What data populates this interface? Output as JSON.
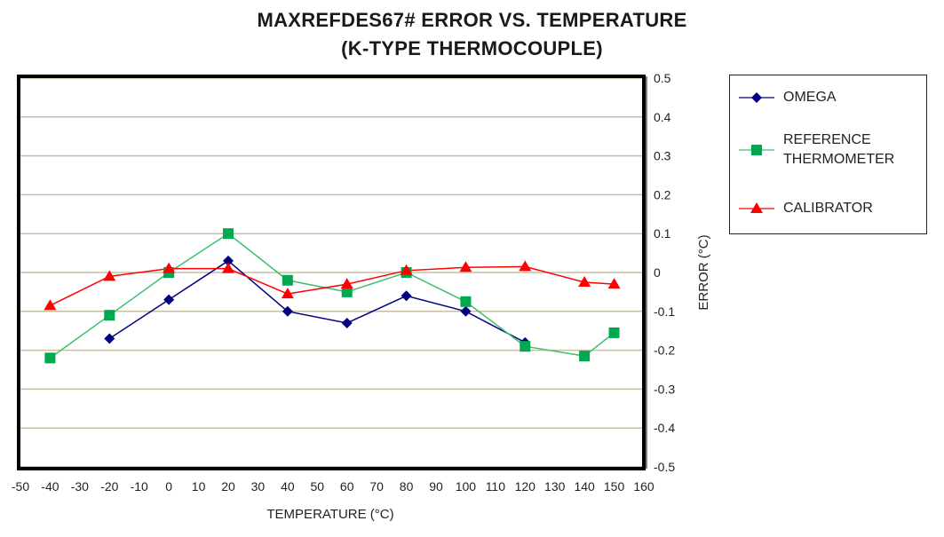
{
  "chart_data": {
    "type": "line",
    "title": "MAXREFDES67# ERROR VS. TEMPERATURE",
    "subtitle": "(K-TYPE THERMOCOUPLE)",
    "xlabel": "TEMPERATURE (°C)",
    "ylabel": "ERROR (°C)",
    "xlim": [
      -50,
      160
    ],
    "ylim": [
      -0.5,
      0.5
    ],
    "x_ticks": [
      "-50",
      "-40",
      "-30",
      "-20",
      "-10",
      "0",
      "10",
      "20",
      "30",
      "40",
      "50",
      "60",
      "70",
      "80",
      "90",
      "100",
      "110",
      "120",
      "130",
      "140",
      "150",
      "160"
    ],
    "y_ticks": [
      "0.5",
      "0.4",
      "0.3",
      "0.2",
      "0.1",
      "0",
      "-0.1",
      "-0.2",
      "-0.3",
      "-0.4",
      "-0.5"
    ],
    "grid": true,
    "y_axis_side": "right",
    "legend_position": "right",
    "series": [
      {
        "name": "OMEGA",
        "color": "#000080",
        "marker": "diamond",
        "x": [
          -20,
          0,
          20,
          40,
          60,
          80,
          100,
          120
        ],
        "y": [
          -0.17,
          -0.07,
          0.03,
          -0.1,
          -0.13,
          -0.06,
          -0.1,
          -0.18
        ]
      },
      {
        "name": "REFERENCE THERMOMETER",
        "color": "#00a850",
        "line_color": "#3cbf6e",
        "marker": "square",
        "x": [
          -40,
          -20,
          0,
          20,
          40,
          60,
          80,
          100,
          120,
          140,
          150
        ],
        "y": [
          -0.22,
          -0.11,
          0.0,
          0.1,
          -0.02,
          -0.05,
          0.0,
          -0.075,
          -0.19,
          -0.215,
          -0.155
        ]
      },
      {
        "name": "CALIBRATOR",
        "color": "#ff0000",
        "marker": "triangle",
        "x": [
          -40,
          -20,
          0,
          20,
          40,
          60,
          80,
          100,
          120,
          140,
          150
        ],
        "y": [
          -0.085,
          -0.01,
          0.01,
          0.01,
          -0.055,
          -0.03,
          0.005,
          0.013,
          0.015,
          -0.025,
          -0.03
        ]
      }
    ]
  },
  "legend": {
    "items": [
      {
        "line1": "OMEGA",
        "line2": ""
      },
      {
        "line1": "REFERENCE",
        "line2": "THERMOMETER"
      },
      {
        "line1": "CALIBRATOR",
        "line2": ""
      }
    ]
  },
  "colors": {
    "grid": "#c8bfa0",
    "frame": "#000000"
  }
}
